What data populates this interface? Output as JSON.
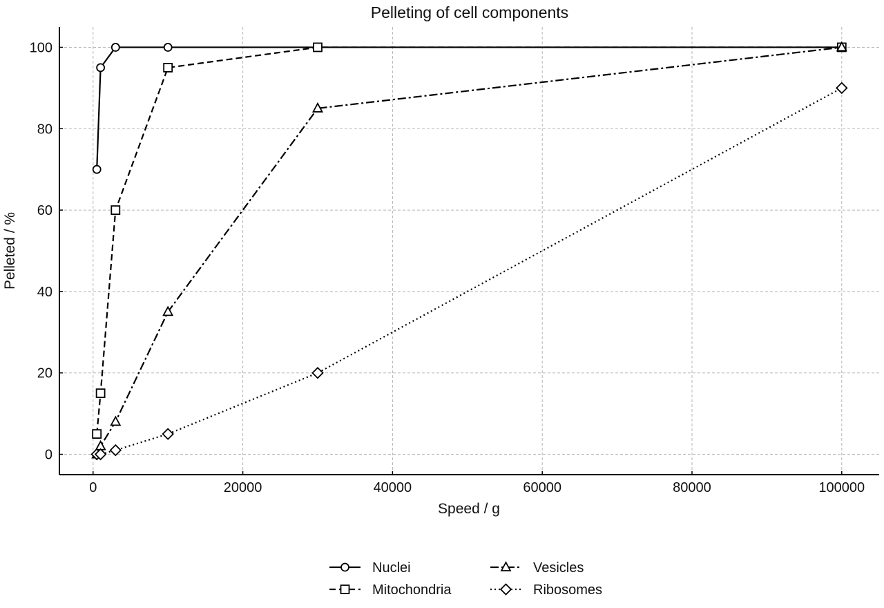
{
  "chart_data": {
    "type": "line",
    "title": "Pelleting of cell components",
    "xlabel": "Speed / g",
    "ylabel": "Pelleted / %",
    "xlim": [
      -4500,
      105000
    ],
    "ylim": [
      -5,
      105
    ],
    "xticks": [
      0,
      20000,
      40000,
      60000,
      80000,
      100000
    ],
    "yticks": [
      0,
      20,
      40,
      60,
      80,
      100
    ],
    "grid": true,
    "legend_position": "bottom-center",
    "series": [
      {
        "name": "Nuclei",
        "line_style": "solid",
        "marker": "circle",
        "x": [
          500,
          1000,
          3000,
          10000,
          30000,
          100000
        ],
        "y": [
          70,
          95,
          100,
          100,
          100,
          100
        ]
      },
      {
        "name": "Mitochondria",
        "line_style": "dashed",
        "marker": "square",
        "x": [
          500,
          1000,
          3000,
          10000,
          30000,
          100000
        ],
        "y": [
          5,
          15,
          60,
          95,
          100,
          100
        ]
      },
      {
        "name": "Vesicles",
        "line_style": "dashdot",
        "marker": "triangle",
        "x": [
          500,
          1000,
          3000,
          10000,
          30000,
          100000
        ],
        "y": [
          0,
          2,
          8,
          35,
          85,
          100
        ]
      },
      {
        "name": "Ribosomes",
        "line_style": "dotted",
        "marker": "diamond",
        "x": [
          500,
          1000,
          3000,
          10000,
          30000,
          100000
        ],
        "y": [
          0,
          0,
          1,
          5,
          20,
          90
        ]
      }
    ],
    "colors": {
      "line": "#000000",
      "marker_fill": "#ffffff",
      "grid": "#b5b5b5"
    }
  }
}
